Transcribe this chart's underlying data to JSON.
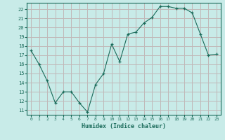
{
  "xlabel": "Humidex (Indice chaleur)",
  "ylabel": "",
  "x": [
    0,
    1,
    2,
    3,
    4,
    5,
    6,
    7,
    8,
    9,
    10,
    11,
    12,
    13,
    14,
    15,
    16,
    17,
    18,
    19,
    20,
    21,
    22,
    23
  ],
  "y": [
    17.5,
    16.0,
    14.2,
    11.8,
    13.0,
    13.0,
    11.8,
    10.8,
    13.8,
    15.0,
    18.2,
    16.3,
    19.3,
    19.5,
    20.5,
    21.1,
    22.3,
    22.3,
    22.1,
    22.1,
    21.6,
    19.3,
    17.0,
    17.1
  ],
  "line_color": "#1a6b5a",
  "marker_color": "#1a6b5a",
  "bg_color": "#c8ebe8",
  "grid_color": "#c0b8b8",
  "tick_color": "#1a6b5a",
  "label_color": "#1a6b5a",
  "ylim": [
    10.5,
    22.7
  ],
  "xlim": [
    -0.5,
    23.5
  ],
  "yticks": [
    11,
    12,
    13,
    14,
    15,
    16,
    17,
    18,
    19,
    20,
    21,
    22
  ],
  "xticks": [
    0,
    1,
    2,
    3,
    4,
    5,
    6,
    7,
    8,
    9,
    10,
    11,
    12,
    13,
    14,
    15,
    16,
    17,
    18,
    19,
    20,
    21,
    22,
    23
  ]
}
